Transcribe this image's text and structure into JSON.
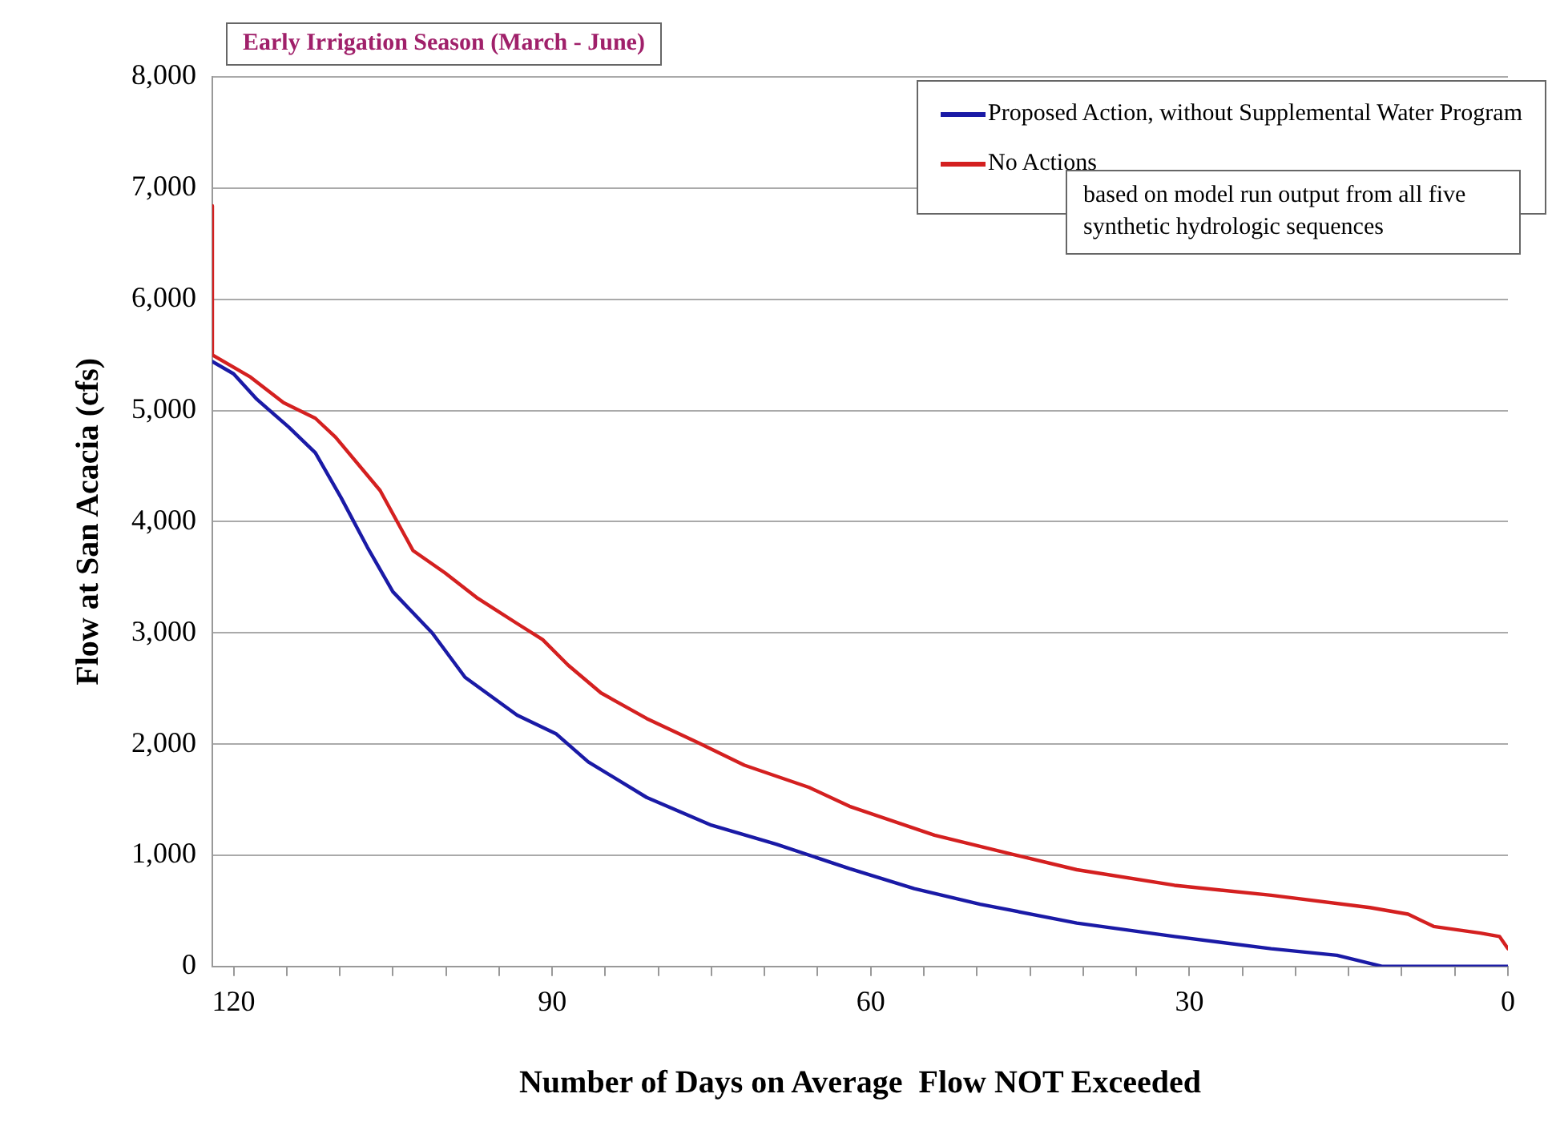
{
  "chart_data": {
    "type": "line",
    "title": "Early Irrigation Season (March - June)",
    "xlabel": "Number of Days on Average  Flow NOT Exceeded",
    "ylabel": "Flow at San Acacia (cfs)",
    "annotations": [
      "based on model run output from all five synthetic hydrologic sequences"
    ],
    "xlim": [
      122,
      0
    ],
    "xticks": [
      {
        "value": 120,
        "label": "120"
      },
      {
        "value": 115,
        "label": null
      },
      {
        "value": 110,
        "label": null
      },
      {
        "value": 105,
        "label": null
      },
      {
        "value": 100,
        "label": null
      },
      {
        "value": 95,
        "label": null
      },
      {
        "value": 90,
        "label": "90"
      },
      {
        "value": 85,
        "label": null
      },
      {
        "value": 80,
        "label": null
      },
      {
        "value": 75,
        "label": null
      },
      {
        "value": 70,
        "label": null
      },
      {
        "value": 65,
        "label": null
      },
      {
        "value": 60,
        "label": "60"
      },
      {
        "value": 55,
        "label": null
      },
      {
        "value": 50,
        "label": null
      },
      {
        "value": 45,
        "label": null
      },
      {
        "value": 40,
        "label": null
      },
      {
        "value": 35,
        "label": null
      },
      {
        "value": 30,
        "label": "30"
      },
      {
        "value": 25,
        "label": null
      },
      {
        "value": 20,
        "label": null
      },
      {
        "value": 15,
        "label": null
      },
      {
        "value": 10,
        "label": null
      },
      {
        "value": 5,
        "label": null
      },
      {
        "value": 0,
        "label": "0"
      }
    ],
    "ylim": [
      0,
      8000
    ],
    "yticks": [
      0,
      {
        "value": 1000,
        "label": "1,000"
      },
      {
        "value": 2000,
        "label": "2,000"
      },
      {
        "value": 3000,
        "label": "3,000"
      },
      {
        "value": 4000,
        "label": "4,000"
      },
      {
        "value": 5000,
        "label": "5,000"
      },
      {
        "value": 6000,
        "label": "6,000"
      },
      {
        "value": 7000,
        "label": "7,000"
      },
      {
        "value": 8000,
        "label": "8,000"
      }
    ],
    "grid": "y",
    "legend": "top right",
    "marker": "none",
    "line_style": "solid",
    "series": [
      {
        "name": "Proposed Action, without Supplemental Water Program",
        "color": "#1a1aa6",
        "x": [
          122,
          120,
          117.8,
          114.8,
          112.3,
          109.9,
          107.4,
          105,
          101.3,
          98.2,
          93.3,
          89.6,
          86.6,
          81.1,
          75,
          68.9,
          62,
          55.9,
          49.7,
          40.6,
          31.4,
          22.3,
          16.1,
          11.8,
          0
        ],
        "values": [
          5440,
          5330,
          5100,
          4850,
          4620,
          4220,
          3770,
          3370,
          3000,
          2600,
          2260,
          2090,
          1840,
          1520,
          1270,
          1100,
          880,
          700,
          560,
          390,
          270,
          160,
          100,
          0,
          0
        ]
      },
      {
        "name": "No Actions",
        "color": "#d42020",
        "x": [
          122,
          122,
          118.4,
          115.3,
          112.3,
          110.4,
          106.2,
          103.1,
          100.1,
          97,
          93.4,
          90.9,
          88.5,
          85.4,
          81.1,
          76.2,
          71.9,
          65.8,
          62,
          54,
          46.7,
          40.6,
          31.4,
          22.3,
          13,
          9.4,
          7,
          2.6,
          0.8,
          0
        ],
        "values": [
          6840,
          5500,
          5300,
          5070,
          4930,
          4760,
          4280,
          3740,
          3540,
          3310,
          3090,
          2940,
          2710,
          2460,
          2230,
          2010,
          1810,
          1610,
          1440,
          1180,
          1010,
          870,
          730,
          640,
          530,
          470,
          360,
          300,
          270,
          160
        ]
      }
    ]
  }
}
